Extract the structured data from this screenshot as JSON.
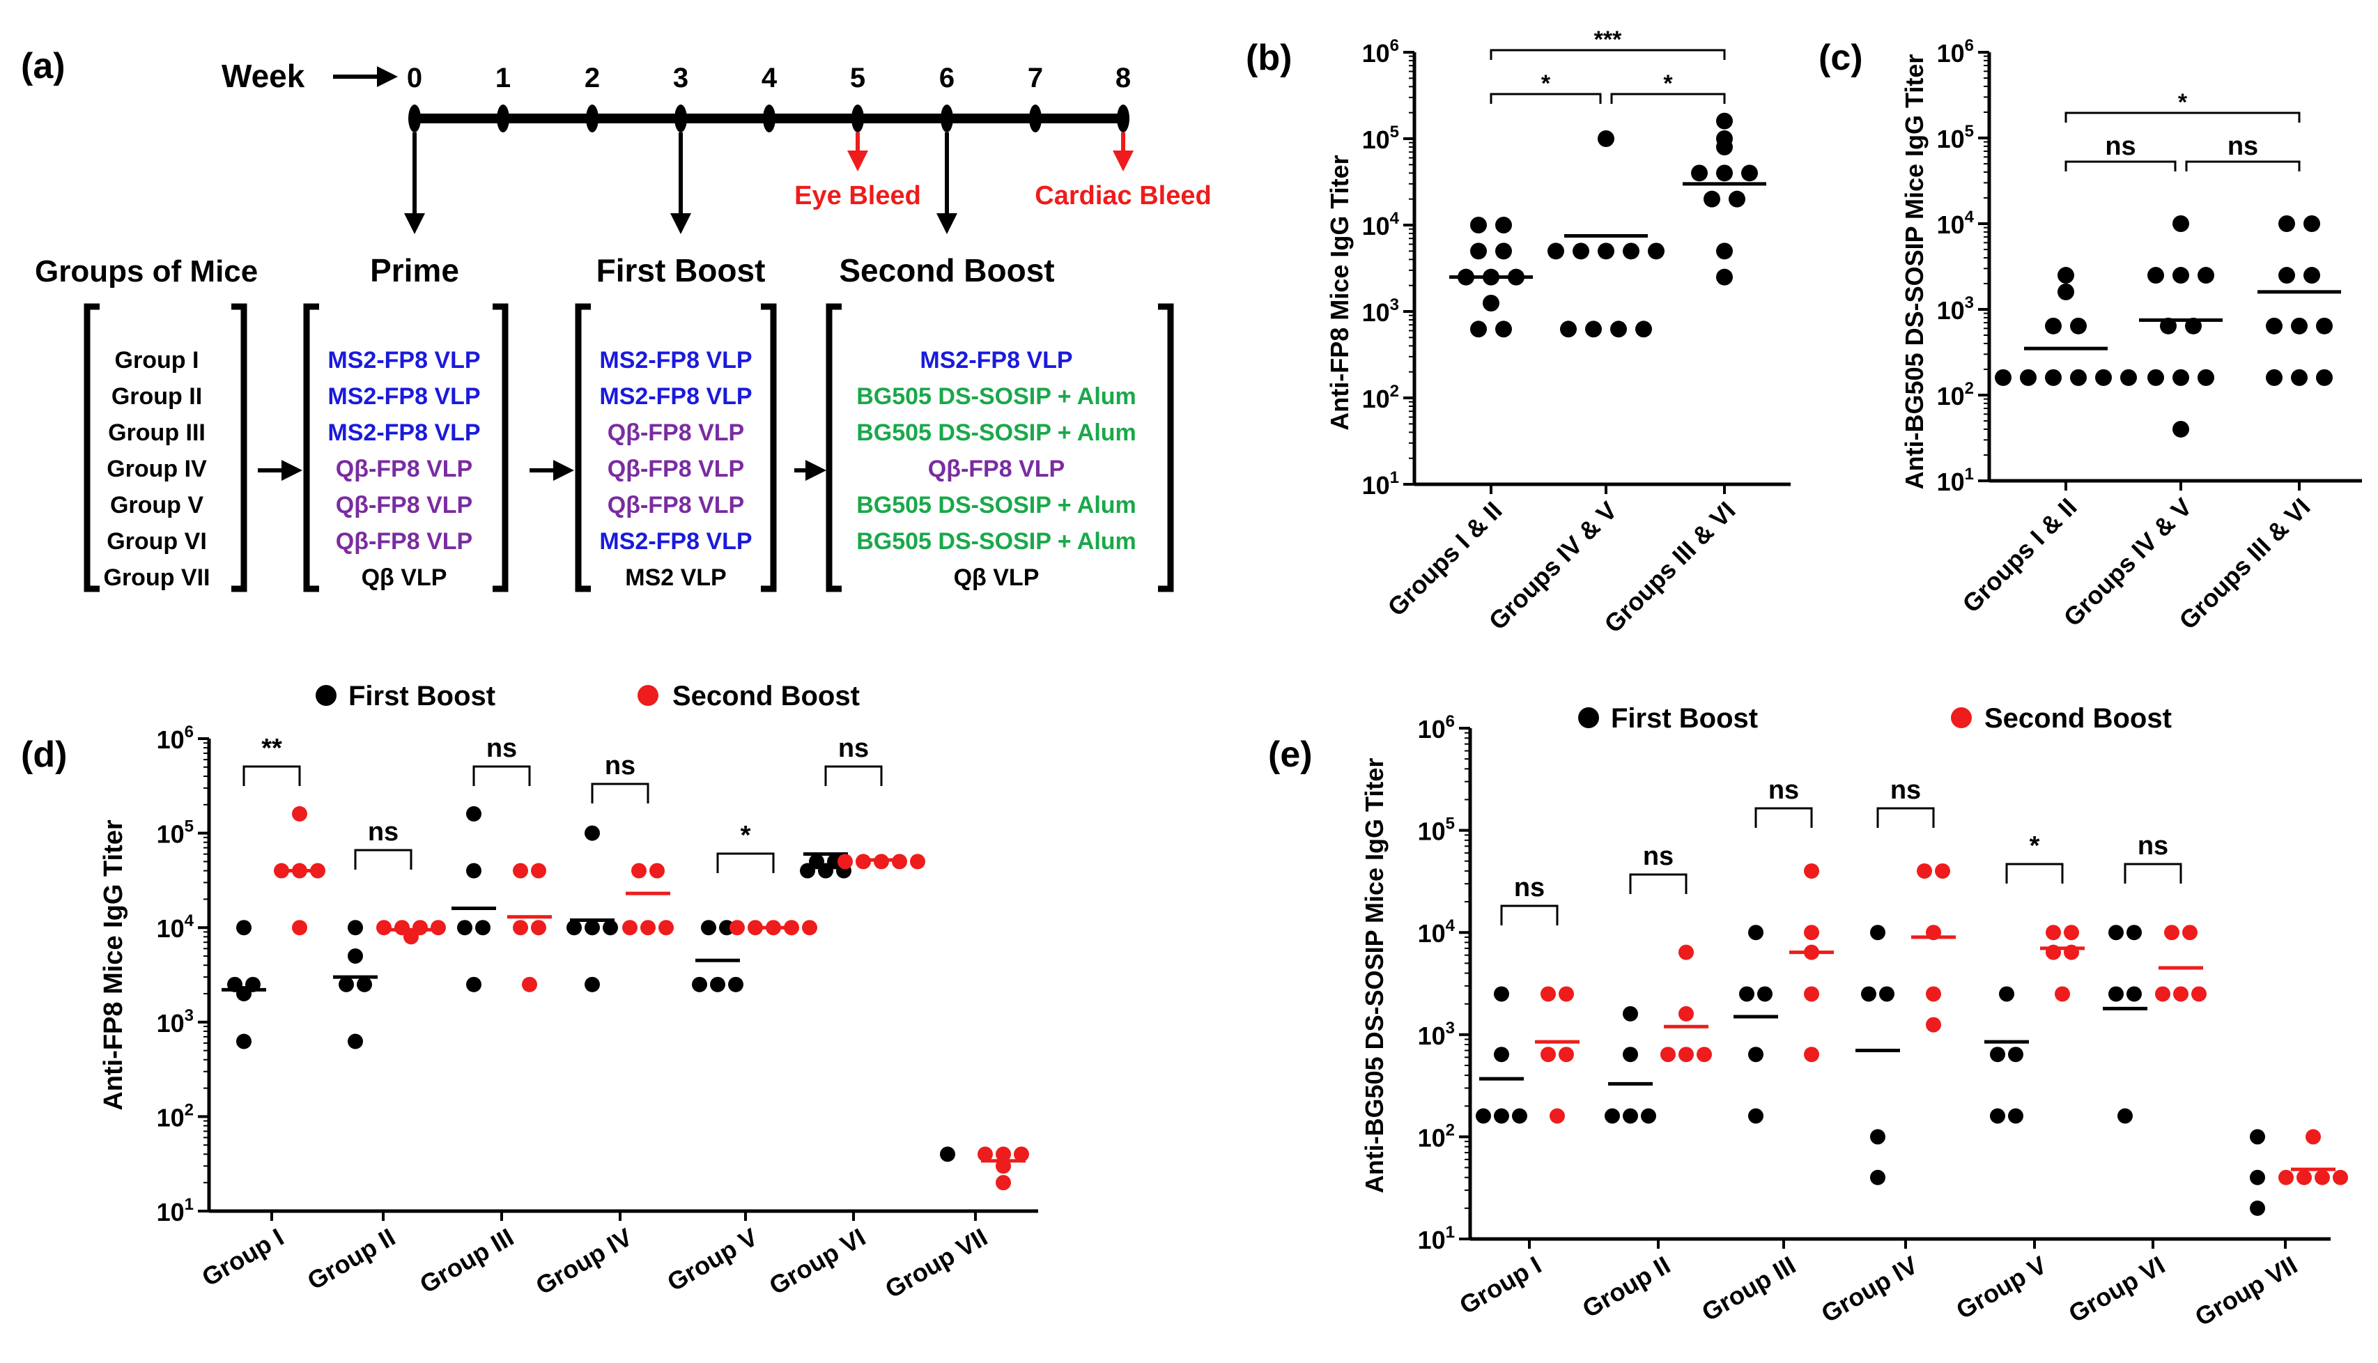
{
  "panel_labels": {
    "a": "(a)",
    "b": "(b)",
    "c": "(c)",
    "d": "(d)",
    "e": "(e)"
  },
  "colors": {
    "first": "#000000",
    "second": "#ee1c1c",
    "blue": "#1a1adc",
    "purple": "#7a2ca0",
    "green": "#1aa84a",
    "red": "#ee1c1c"
  },
  "timeline": {
    "week_label": "Week",
    "weeks": [
      "0",
      "1",
      "2",
      "3",
      "4",
      "5",
      "6",
      "7",
      "8"
    ],
    "events": [
      {
        "label": "Prime",
        "week": 0,
        "kind": "dose"
      },
      {
        "label": "First Boost",
        "week": 3,
        "kind": "dose"
      },
      {
        "label": "Second Boost",
        "week": 6,
        "kind": "dose"
      },
      {
        "label": "Eye Bleed",
        "week": 5,
        "kind": "bleed"
      },
      {
        "label": "Cardiac Bleed",
        "week": 8,
        "kind": "bleed"
      }
    ],
    "groups_header": "Groups of Mice"
  },
  "schedule": {
    "groups": [
      "Group I",
      "Group II",
      "Group III",
      "Group IV",
      "Group V",
      "Group VI",
      "Group VII"
    ],
    "prime": [
      {
        "t": "MS2-FP8 VLP",
        "c": "blue"
      },
      {
        "t": "MS2-FP8 VLP",
        "c": "blue"
      },
      {
        "t": "MS2-FP8 VLP",
        "c": "blue"
      },
      {
        "t": "Qβ-FP8 VLP",
        "c": "purple"
      },
      {
        "t": "Qβ-FP8 VLP",
        "c": "purple"
      },
      {
        "t": "Qβ-FP8 VLP",
        "c": "purple"
      },
      {
        "t": "Qβ VLP",
        "c": "black"
      }
    ],
    "first": [
      {
        "t": "MS2-FP8 VLP",
        "c": "blue"
      },
      {
        "t": "MS2-FP8 VLP",
        "c": "blue"
      },
      {
        "t": "Qβ-FP8 VLP",
        "c": "purple"
      },
      {
        "t": "Qβ-FP8 VLP",
        "c": "purple"
      },
      {
        "t": "Qβ-FP8 VLP",
        "c": "purple"
      },
      {
        "t": "MS2-FP8 VLP",
        "c": "blue"
      },
      {
        "t": "MS2 VLP",
        "c": "black"
      }
    ],
    "second": [
      {
        "t": "MS2-FP8 VLP",
        "c": "blue"
      },
      {
        "t": "BG505 DS-SOSIP + Alum",
        "c": "green"
      },
      {
        "t": "BG505 DS-SOSIP + Alum",
        "c": "green"
      },
      {
        "t": "Qβ-FP8 VLP",
        "c": "purple"
      },
      {
        "t": "BG505 DS-SOSIP + Alum",
        "c": "green"
      },
      {
        "t": "BG505 DS-SOSIP + Alum",
        "c": "green"
      },
      {
        "t": "Qβ VLP",
        "c": "black"
      }
    ]
  },
  "chart_data": [
    {
      "id": "b",
      "type": "scatter",
      "ylabel": "Anti-FP8 Mice IgG Titer",
      "yscale": "log",
      "ylim": [
        10,
        1000000
      ],
      "ytick_exponents": [
        "1",
        "2",
        "3",
        "4",
        "5",
        "6"
      ],
      "categories": [
        "Groups I & II",
        "Groups IV & V",
        "Groups III & VI"
      ],
      "series": [
        {
          "name": "Titer",
          "color": "#000000",
          "values": [
            [
              10000,
              10000,
              5000,
              5000,
              2500,
              2500,
              2500,
              1250,
              625,
              625
            ],
            [
              100000,
              5000,
              5000,
              5000,
              5000,
              5000,
              625,
              625,
              625,
              625
            ],
            [
              160000,
              100000,
              80000,
              40000,
              40000,
              40000,
              20000,
              20000,
              5000,
              2500
            ]
          ]
        }
      ],
      "medians": [
        2500,
        7500,
        30000
      ],
      "significance": [
        {
          "from": 0,
          "to": 2,
          "label": "***",
          "level": 1
        },
        {
          "from": 0,
          "to": 1,
          "label": "*",
          "level": 0
        },
        {
          "from": 1,
          "to": 2,
          "label": "*",
          "level": 0
        }
      ]
    },
    {
      "id": "c",
      "type": "scatter",
      "ylabel": "Anti-BG505 DS-SOSIP Mice IgG Titer",
      "yscale": "log",
      "ylim": [
        10,
        1000000
      ],
      "ytick_exponents": [
        "1",
        "2",
        "3",
        "4",
        "5",
        "6"
      ],
      "categories": [
        "Groups I & II",
        "Groups IV & V",
        "Groups III & VI"
      ],
      "series": [
        {
          "name": "Titer",
          "color": "#000000",
          "values": [
            [
              2500,
              1600,
              640,
              640,
              160,
              160,
              160,
              160,
              160,
              160
            ],
            [
              10000,
              2500,
              2500,
              2500,
              640,
              640,
              160,
              160,
              160,
              40
            ],
            [
              10000,
              10000,
              2500,
              2500,
              640,
              640,
              640,
              160,
              160,
              160
            ]
          ]
        }
      ],
      "medians": [
        350,
        750,
        1600
      ],
      "significance": [
        {
          "from": 0,
          "to": 2,
          "label": "*",
          "level": 1
        },
        {
          "from": 0,
          "to": 1,
          "label": "ns",
          "level": 0
        },
        {
          "from": 1,
          "to": 2,
          "label": "ns",
          "level": 0
        }
      ]
    },
    {
      "id": "d",
      "type": "scatter",
      "ylabel": "Anti-FP8 Mice IgG Titer",
      "yscale": "log",
      "ylim": [
        10,
        1000000
      ],
      "ytick_exponents": [
        "1",
        "2",
        "3",
        "4",
        "5",
        "6"
      ],
      "categories": [
        "Group I",
        "Group II",
        "Group III",
        "Group IV",
        "Group V",
        "Group VI",
        "Group VII"
      ],
      "legend": [
        "First Boost",
        "Second Boost"
      ],
      "series": [
        {
          "name": "First Boost",
          "color": "#000000",
          "values": [
            [
              10000,
              2500,
              2500,
              2000,
              625
            ],
            [
              10000,
              5000,
              2500,
              2500,
              625
            ],
            [
              160000,
              40000,
              10000,
              10000,
              2500
            ],
            [
              100000,
              10000,
              10000,
              10000,
              2500
            ],
            [
              10000,
              10000,
              2500,
              2500,
              2500
            ],
            [
              50000,
              50000,
              40000,
              40000,
              40000
            ],
            [
              40
            ]
          ],
          "medians": [
            2200,
            3000,
            16000,
            12000,
            4500,
            60000,
            null
          ]
        },
        {
          "name": "Second Boost",
          "color": "#ee1c1c",
          "values": [
            [
              160000,
              40000,
              40000,
              40000,
              10000
            ],
            [
              10000,
              10000,
              10000,
              10000,
              8000
            ],
            [
              40000,
              40000,
              10000,
              10000,
              2500
            ],
            [
              40000,
              40000,
              10000,
              10000,
              10000
            ],
            [
              10000,
              10000,
              10000,
              10000,
              10000
            ],
            [
              50000,
              50000,
              50000,
              50000,
              50000
            ],
            [
              40,
              40,
              40,
              30,
              20
            ]
          ],
          "medians": [
            40000,
            9500,
            13000,
            23000,
            10000,
            52000,
            34
          ]
        }
      ],
      "significance": [
        "**",
        "ns",
        "ns",
        "ns",
        "*",
        "ns",
        ""
      ]
    },
    {
      "id": "e",
      "type": "scatter",
      "ylabel": "Anti-BG505 DS-SOSIP Mice IgG Titer",
      "yscale": "log",
      "ylim": [
        10,
        1000000
      ],
      "ytick_exponents": [
        "1",
        "2",
        "3",
        "4",
        "5",
        "6"
      ],
      "categories": [
        "Group I",
        "Group II",
        "Group III",
        "Group IV",
        "Group V",
        "Group VI",
        "Group VII"
      ],
      "legend": [
        "First Boost",
        "Second Boost"
      ],
      "series": [
        {
          "name": "First Boost",
          "color": "#000000",
          "values": [
            [
              2500,
              640,
              160,
              160,
              160
            ],
            [
              1600,
              640,
              160,
              160,
              160
            ],
            [
              10000,
              2500,
              2500,
              640,
              160
            ],
            [
              10000,
              2500,
              2500,
              100,
              40
            ],
            [
              2500,
              640,
              640,
              160,
              160
            ],
            [
              10000,
              10000,
              2500,
              2500,
              160
            ],
            [
              100,
              40,
              20
            ]
          ],
          "medians": [
            370,
            330,
            1500,
            700,
            850,
            1800,
            null
          ]
        },
        {
          "name": "Second Boost",
          "color": "#ee1c1c",
          "values": [
            [
              2500,
              2500,
              640,
              640,
              160
            ],
            [
              6400,
              1600,
              640,
              640,
              640
            ],
            [
              40000,
              10000,
              6400,
              2500,
              640
            ],
            [
              40000,
              40000,
              10000,
              2500,
              1250
            ],
            [
              10000,
              10000,
              6400,
              6400,
              2500
            ],
            [
              10000,
              10000,
              2500,
              2500,
              2500
            ],
            [
              100,
              40,
              40,
              40,
              40
            ]
          ],
          "medians": [
            850,
            1200,
            6400,
            9000,
            7000,
            4500,
            48
          ]
        }
      ],
      "significance": [
        "ns",
        "ns",
        "ns",
        "ns",
        "*",
        "ns",
        ""
      ]
    }
  ]
}
